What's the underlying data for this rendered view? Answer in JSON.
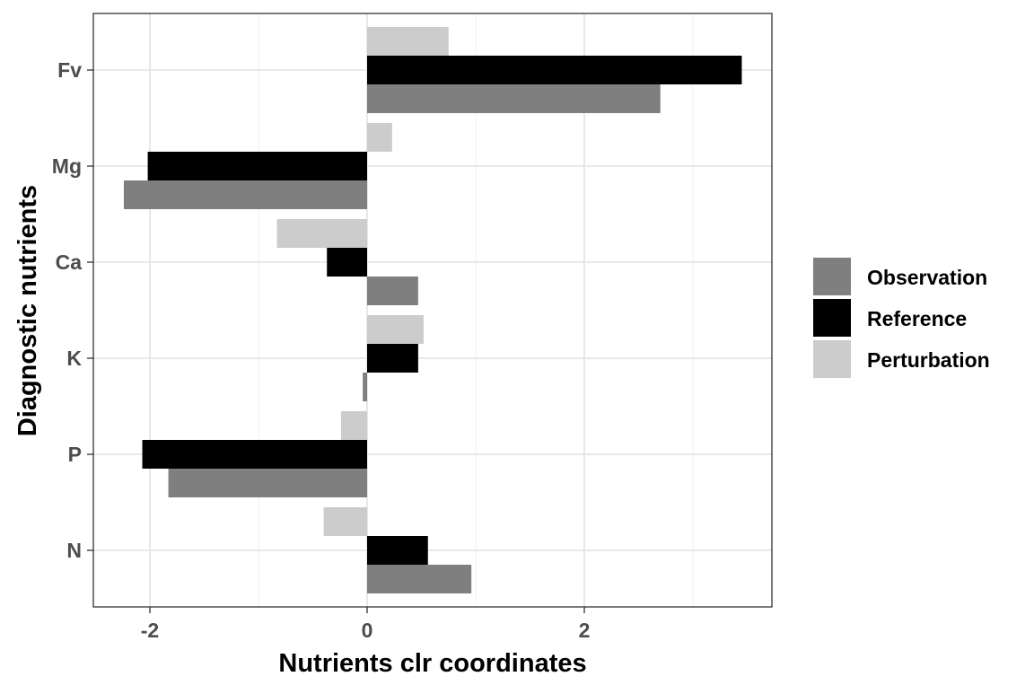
{
  "chart_data": {
    "type": "bar",
    "orientation": "horizontal",
    "title": "",
    "xlabel": "Nutrients clr coordinates",
    "ylabel": "Diagnostic nutrients",
    "xlim": [
      -2.52,
      3.73
    ],
    "xticks": [
      -2,
      0,
      2
    ],
    "xtick_labels": [
      "-2",
      "0",
      "2"
    ],
    "categories": [
      "N",
      "P",
      "K",
      "Ca",
      "Mg",
      "Fv"
    ],
    "series": [
      {
        "name": "Observation",
        "color": "#7f7f7f",
        "values": [
          0.96,
          -1.83,
          -0.04,
          0.47,
          -2.24,
          2.7
        ]
      },
      {
        "name": "Reference",
        "color": "#000000",
        "values": [
          0.56,
          -2.07,
          0.47,
          -0.37,
          -2.02,
          3.45
        ]
      },
      {
        "name": "Perturbation",
        "color": "#cccccc",
        "values": [
          -0.4,
          -0.24,
          0.52,
          -0.83,
          0.23,
          0.75
        ]
      }
    ],
    "grid": true,
    "legend_position": "right"
  },
  "legend": {
    "items": [
      {
        "label": "Observation",
        "color": "#7f7f7f"
      },
      {
        "label": "Reference",
        "color": "#000000"
      },
      {
        "label": "Perturbation",
        "color": "#cccccc"
      }
    ]
  }
}
